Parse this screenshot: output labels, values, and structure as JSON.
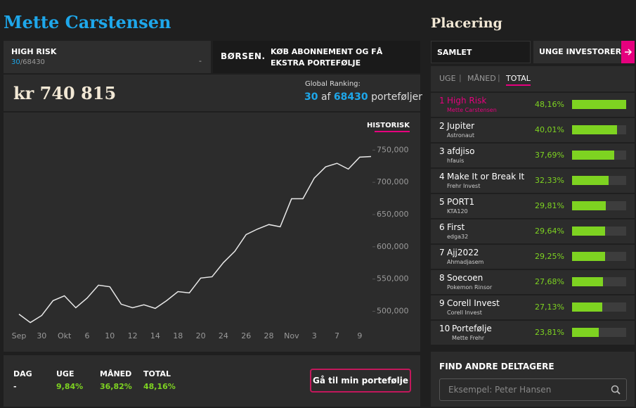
{
  "header": {
    "name": "Mette Carstensen"
  },
  "portfolio_tab": {
    "title": "HIGH RISK",
    "rank": "30",
    "total": "/68430",
    "menu": "-"
  },
  "promo": {
    "logo": "BØRSEN.",
    "text": "KØB ABONNEMENT OG FÅ EKSTRA PORTEFØLJE"
  },
  "value": {
    "amount": "kr 740 815",
    "change": "-"
  },
  "global_ranking": {
    "label": "Global Ranking:",
    "rank": "30",
    "of": "af",
    "total": "68430",
    "unit": "porteføljer"
  },
  "chart_data": {
    "type": "line",
    "tab": "HISTORISK",
    "color": "#e8e8e8",
    "categories": [
      "Sep",
      null,
      "30",
      null,
      "Okt",
      null,
      "6",
      null,
      "10",
      null,
      "12",
      null,
      "14",
      null,
      "18",
      null,
      "20",
      null,
      "24",
      null,
      "26",
      null,
      "28",
      null,
      "Nov",
      null,
      "3",
      null,
      "7",
      null,
      "9",
      null
    ],
    "values": [
      495500,
      482500,
      493500,
      516500,
      524000,
      505500,
      520500,
      540500,
      538000,
      511000,
      505500,
      510000,
      504500,
      516500,
      530500,
      528500,
      551500,
      553500,
      575500,
      593000,
      619000,
      627500,
      634500,
      631000,
      674500,
      674500,
      706500,
      724000,
      729500,
      720500,
      739000,
      740000
    ],
    "ylim": [
      470000,
      770000
    ],
    "yticks": [
      {
        "value": 500000,
        "label": "500,000"
      },
      {
        "value": 550000,
        "label": "550,000"
      },
      {
        "value": 600000,
        "label": "600,000"
      },
      {
        "value": 650000,
        "label": "650,000"
      },
      {
        "value": 700000,
        "label": "700,000"
      },
      {
        "value": 750000,
        "label": "750,000"
      }
    ]
  },
  "stats": [
    {
      "label": "DAG",
      "value": "-"
    },
    {
      "label": "UGE",
      "value": "9,84%"
    },
    {
      "label": "MÅNED",
      "value": "36,82%"
    },
    {
      "label": "TOTAL",
      "value": "48,16%"
    }
  ],
  "button": "Gå til min portefølje",
  "sidebar": {
    "title": "Placering",
    "tabs": [
      "SAMLET",
      "UNGE INVESTORER"
    ],
    "period_tabs": [
      "UGE",
      "MÅNED",
      "TOTAL"
    ]
  },
  "ranking": {
    "color": "#7ed321",
    "rows": [
      {
        "rank": 1,
        "name": "High Risk",
        "user": "Mette Carstensen",
        "value": 48.16,
        "value_label": "48,16%"
      },
      {
        "rank": 2,
        "name": "Jupiter",
        "user": "Astronaut",
        "value": 40.01,
        "value_label": "40,01%"
      },
      {
        "rank": 3,
        "name": "afdjiso",
        "user": "hfauis",
        "value": 37.69,
        "value_label": "37,69%"
      },
      {
        "rank": 4,
        "name": "Make It or Break It",
        "user": "Frehr Invest",
        "value": 32.33,
        "value_label": "32,33%"
      },
      {
        "rank": 5,
        "name": "PORT1",
        "user": "KTA120",
        "value": 29.81,
        "value_label": "29,81%"
      },
      {
        "rank": 6,
        "name": "First",
        "user": "edga32",
        "value": 29.64,
        "value_label": "29,64%"
      },
      {
        "rank": 7,
        "name": "Ajj2022",
        "user": "Ahmadjasem",
        "value": 29.25,
        "value_label": "29,25%"
      },
      {
        "rank": 8,
        "name": "Soecoen",
        "user": "Pokemon Rinsor",
        "value": 27.68,
        "value_label": "27,68%"
      },
      {
        "rank": 9,
        "name": "Corell Invest",
        "user": "Corell Invest",
        "value": 27.13,
        "value_label": "27,13%"
      },
      {
        "rank": 10,
        "name": "Portefølje",
        "user": "Mette Frehr",
        "value": 23.81,
        "value_label": "23,81%"
      }
    ]
  },
  "find": {
    "title": "FIND ANDRE DELTAGERE",
    "placeholder": "Eksempel: Peter Hansen"
  }
}
